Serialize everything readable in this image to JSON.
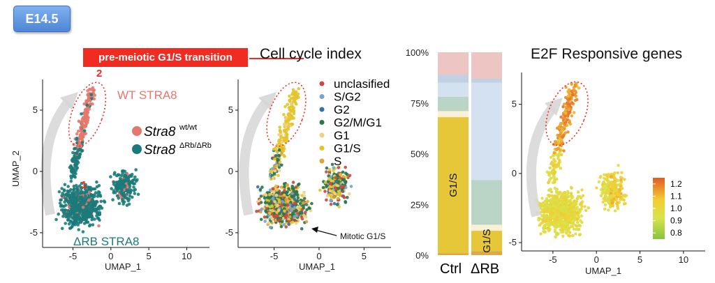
{
  "stage": "E14.5",
  "callout": "pre-meiotic G1/S transition",
  "colors": {
    "wt": "#e3786d",
    "drb": "#1b7b7a",
    "callout": "#ef2b22",
    "unclasified": "#c84a44",
    "S/G2": "#7aa3cf",
    "G2": "#3d6fa7",
    "G2/M/G1": "#287a4a",
    "G1": "#efd27f",
    "G1/S": "#e4c42e",
    "S": "#dba43a"
  },
  "chart_data": [
    {
      "type": "scatter",
      "xlabel": "UMAP_1",
      "ylabel": "UMAP_2",
      "xticks": [
        -5,
        0,
        5,
        10
      ],
      "yticks": [
        -5,
        0,
        5
      ],
      "xlim": [
        -9,
        13
      ],
      "ylim": [
        -6.2,
        7.5
      ],
      "legend": [
        {
          "name": "Stra8",
          "sup": "wt/wt"
        },
        {
          "name": "Stra8",
          "sup": "ΔRb/ΔRb"
        }
      ],
      "annotations": [
        "WT STRA8",
        "ΔRB STRA8",
        "1",
        "2"
      ]
    },
    {
      "type": "scatter",
      "title": "Cell cycle index",
      "xlabel": "UMAP_1",
      "xticks": [
        -5,
        0,
        5
      ],
      "yticks": [
        -5,
        0,
        5
      ],
      "xlim": [
        -9,
        8
      ],
      "ylim": [
        -6.2,
        7.5
      ],
      "legend": [
        "unclasified",
        "S/G2",
        "G2",
        "G2/M/G1",
        "G1",
        "G1/S",
        "S"
      ],
      "annotations": [
        "Mitotic G1/S"
      ]
    },
    {
      "type": "bar",
      "stacked": true,
      "categories": [
        "Ctrl",
        "ΔRB"
      ],
      "yticks": [
        "0%",
        "25%",
        "50%",
        "75%",
        "100%"
      ],
      "ylim": [
        0,
        100
      ],
      "series": [
        {
          "name": "S",
          "values": [
            1,
            2
          ]
        },
        {
          "name": "G1/S",
          "values": [
            67,
            10
          ]
        },
        {
          "name": "G1",
          "values": [
            3,
            3
          ]
        },
        {
          "name": "G2/M/G1",
          "values": [
            7,
            22
          ]
        },
        {
          "name": "S/G2",
          "values": [
            7,
            48
          ]
        },
        {
          "name": "G2",
          "values": [
            4,
            2
          ]
        },
        {
          "name": "unclasified",
          "values": [
            11,
            13
          ]
        }
      ],
      "bar_labels": [
        "G1/S",
        "G1/S"
      ]
    },
    {
      "type": "scatter",
      "title": "E2F Responsive genes",
      "xlabel": "UMAP_1",
      "xticks": [
        -5,
        0,
        5,
        10
      ],
      "yticks": [
        -5,
        0,
        5
      ],
      "xlim": [
        -8.6,
        12.5
      ],
      "ylim": [
        -5.6,
        7.3
      ],
      "colorbar": {
        "ticks": [
          "1.2",
          "1.1",
          "1.0",
          "0.9",
          "0.8"
        ],
        "min": 0.75,
        "max": 1.25
      }
    }
  ]
}
